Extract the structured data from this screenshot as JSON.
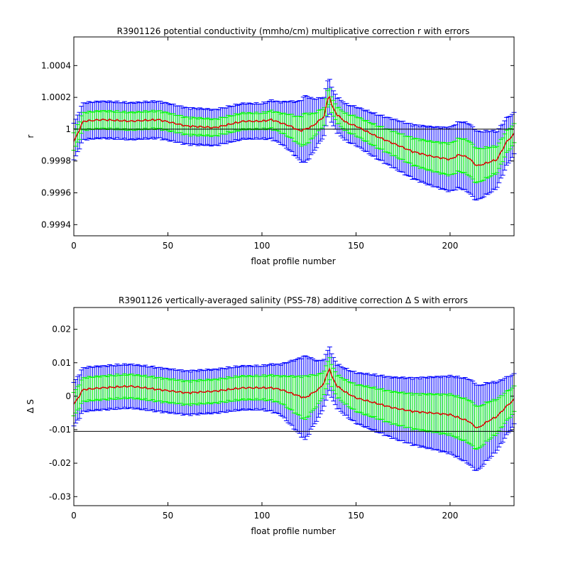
{
  "chart_data": [
    {
      "type": "line",
      "title": "R3901126 potential conductivity (mmho/cm) multiplicative correction r with errors",
      "xlabel": "float profile number",
      "ylabel": "r",
      "xlim": [
        0,
        234
      ],
      "ylim": [
        0.99933,
        1.00058
      ],
      "xticks": [
        "0",
        "50",
        "100",
        "150",
        "200"
      ],
      "xtick_values": [
        0,
        50,
        100,
        150,
        200
      ],
      "yticks": [
        "0.9994",
        "0.9996",
        "0.9998",
        "1",
        "1.0002",
        "1.0004"
      ],
      "ytick_values": [
        0.9994,
        0.9996,
        0.9998,
        1.0,
        1.0002,
        1.0004
      ],
      "reference_line": 1.0,
      "grid": false,
      "colors": {
        "center": "#dd0000",
        "inner_error": "#00ff00",
        "outer_error": "#0000ff",
        "reference": "#000000"
      },
      "x_knots": [
        0,
        5,
        15,
        30,
        45,
        60,
        75,
        90,
        100,
        105,
        110,
        115,
        120,
        123,
        127,
        130,
        133,
        135,
        136,
        137,
        140,
        145,
        150,
        160,
        170,
        180,
        190,
        200,
        205,
        210,
        213,
        215,
        220,
        225,
        230,
        234
      ],
      "y_knots": [
        0.99992,
        1.00005,
        1.00006,
        1.00005,
        1.00006,
        1.00002,
        1.00001,
        1.00005,
        1.00005,
        1.00006,
        1.00004,
        1.00002,
        0.99999,
        1.0,
        1.00002,
        1.00005,
        1.00008,
        1.00019,
        1.00021,
        1.00015,
        1.00009,
        1.00004,
        1.00002,
        0.99996,
        0.99991,
        0.99986,
        0.99983,
        0.99981,
        0.99984,
        0.99982,
        0.99978,
        0.99977,
        0.99979,
        0.99981,
        0.99992,
        0.99997
      ],
      "inner_err_x": [
        0,
        50,
        100,
        110,
        118,
        123,
        128,
        133,
        136,
        140,
        150,
        175,
        200,
        213,
        222,
        234
      ],
      "inner_err": [
        5.5e-05,
        5.5e-05,
        5e-05,
        6e-05,
        8e-05,
        0.0001,
        7e-05,
        5.5e-05,
        5e-05,
        5e-05,
        6e-05,
        8e-05,
        0.0001,
        0.00011,
        9e-05,
        6e-05
      ],
      "outer_err_x": [
        0,
        50,
        100,
        110,
        118,
        123,
        128,
        133,
        136,
        140,
        150,
        175,
        200,
        213,
        222,
        234
      ],
      "outer_err": [
        0.000115,
        0.000115,
        0.00011,
        0.00013,
        0.00017,
        0.00021,
        0.00016,
        0.00012,
        0.00011,
        0.00011,
        0.00012,
        0.00016,
        0.0002,
        0.00022,
        0.00019,
        0.00013
      ]
    },
    {
      "type": "line",
      "title": "R3901126 vertically-averaged salinity (PSS-78) additive correction Δ S with errors",
      "xlabel": "float profile number",
      "ylabel": "Δ S",
      "xlim": [
        0,
        234
      ],
      "ylim": [
        -0.0327,
        0.0265
      ],
      "xticks": [
        "0",
        "50",
        "100",
        "150",
        "200"
      ],
      "xtick_values": [
        0,
        50,
        100,
        150,
        200
      ],
      "yticks": [
        "-0.03",
        "-0.02",
        "-0.01",
        "0",
        "0.01",
        "0.02"
      ],
      "ytick_values": [
        -0.03,
        -0.02,
        -0.01,
        0.0,
        0.01,
        0.02
      ],
      "reference_line": -0.0105,
      "grid": false,
      "colors": {
        "center": "#dd0000",
        "inner_error": "#00ff00",
        "outer_error": "#0000ff",
        "reference": "#000000"
      },
      "x_knots": [
        0,
        5,
        15,
        30,
        45,
        60,
        75,
        90,
        100,
        105,
        110,
        115,
        120,
        123,
        127,
        130,
        133,
        135,
        136,
        137,
        140,
        145,
        150,
        160,
        170,
        180,
        190,
        200,
        205,
        210,
        213,
        215,
        220,
        225,
        230,
        234
      ],
      "y_knots": [
        -0.0025,
        0.002,
        0.0025,
        0.003,
        0.002,
        0.001,
        0.0015,
        0.0025,
        0.0025,
        0.0025,
        0.002,
        0.001,
        0.0,
        -0.0005,
        0.001,
        0.002,
        0.004,
        0.007,
        0.0085,
        0.006,
        0.003,
        0.001,
        -0.0005,
        -0.002,
        -0.0035,
        -0.0045,
        -0.005,
        -0.0055,
        -0.0065,
        -0.0075,
        -0.009,
        -0.0095,
        -0.0075,
        -0.006,
        -0.003,
        -0.001
      ],
      "inner_err_x": [
        0,
        50,
        100,
        110,
        118,
        123,
        128,
        133,
        136,
        140,
        150,
        175,
        200,
        213,
        222,
        234
      ],
      "inner_err": [
        0.0035,
        0.0035,
        0.0035,
        0.004,
        0.0055,
        0.0065,
        0.005,
        0.0035,
        0.0033,
        0.0033,
        0.004,
        0.005,
        0.006,
        0.0065,
        0.0055,
        0.0038
      ],
      "outer_err_x": [
        0,
        50,
        100,
        110,
        118,
        123,
        128,
        133,
        136,
        140,
        150,
        175,
        200,
        213,
        222,
        234
      ],
      "outer_err": [
        0.0065,
        0.0065,
        0.0065,
        0.0075,
        0.0105,
        0.0125,
        0.0095,
        0.007,
        0.0065,
        0.0065,
        0.0075,
        0.0095,
        0.0115,
        0.013,
        0.011,
        0.0075
      ]
    }
  ]
}
